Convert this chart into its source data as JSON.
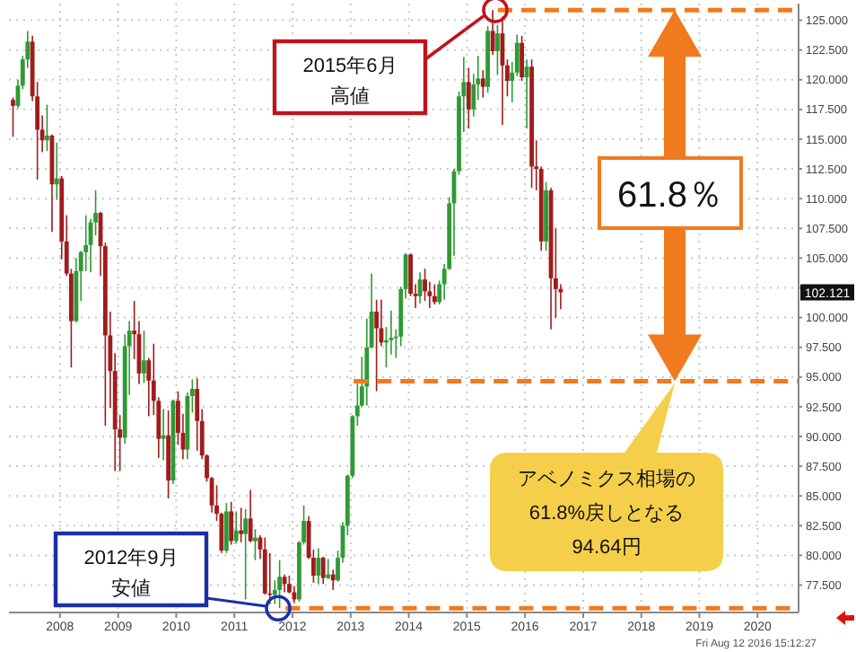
{
  "chart_data": {
    "type": "candlestick",
    "xlim": [
      "2007-02",
      "2020-09"
    ],
    "xticks": [
      "2008",
      "2009",
      "2010",
      "2011",
      "2012",
      "2013",
      "2014",
      "2015",
      "2016",
      "2017",
      "2018",
      "2019",
      "2020"
    ],
    "ylim": [
      75.2,
      126.4
    ],
    "yticks": [
      {
        "value": 77.5,
        "label": "77.500"
      },
      {
        "value": 80,
        "label": "80.000"
      },
      {
        "value": 82.5,
        "label": "82.500"
      },
      {
        "value": 85,
        "label": "85.000"
      },
      {
        "value": 87.5,
        "label": "87.500"
      },
      {
        "value": 90,
        "label": "90.000"
      },
      {
        "value": 92.5,
        "label": "92.500"
      },
      {
        "value": 95,
        "label": "95.000"
      },
      {
        "value": 97.5,
        "label": "97.500"
      },
      {
        "value": 100,
        "label": "100.000"
      },
      {
        "value": 102.5,
        "label": null
      },
      {
        "value": 105,
        "label": "105.000"
      },
      {
        "value": 107.5,
        "label": "107.500"
      },
      {
        "value": 110,
        "label": "110.000"
      },
      {
        "value": 112.5,
        "label": "112.500"
      },
      {
        "value": 115,
        "label": "115.000"
      },
      {
        "value": 117.5,
        "label": "117.500"
      },
      {
        "value": 120,
        "label": "120.000"
      },
      {
        "value": 122.5,
        "label": "122.500"
      },
      {
        "value": 125,
        "label": "125.000"
      }
    ],
    "grid": true,
    "series": [
      {
        "color": "#2f9a35",
        "x": [
          "2007-04",
          "2007-05",
          "2007-06",
          "2007-10",
          "2007-12",
          "2008-04",
          "2008-05",
          "2008-06",
          "2008-07",
          "2008-08",
          "2009-02",
          "2009-03",
          "2009-06",
          "2009-10",
          "2009-12",
          "2010-03",
          "2010-04",
          "2010-11",
          "2011-01",
          "2011-03",
          "2011-05",
          "2011-09",
          "2011-10",
          "2012-02",
          "2012-03",
          "2012-06",
          "2012-08",
          "2012-10",
          "2012-11",
          "2012-12",
          "2013-01",
          "2013-02",
          "2013-03",
          "2013-04",
          "2013-05",
          "2013-08",
          "2013-09",
          "2013-10",
          "2013-11",
          "2013-12",
          "2014-03",
          "2014-07",
          "2014-08",
          "2014-09",
          "2014-10",
          "2014-11",
          "2014-12",
          "2015-02",
          "2015-03",
          "2015-05",
          "2015-07",
          "2015-10",
          "2015-11",
          "2016-01",
          "2016-05"
        ],
        "ohlc": [
          [
            117.8,
            120.0,
            117.6,
            119.5
          ],
          [
            119.5,
            122.0,
            119.2,
            121.7
          ],
          [
            121.7,
            124.1,
            121.0,
            123.2
          ],
          [
            114.9,
            117.9,
            114.0,
            115.3
          ],
          [
            111.2,
            114.7,
            109.9,
            111.7
          ],
          [
            99.7,
            105.0,
            99.6,
            103.9
          ],
          [
            103.9,
            105.6,
            101.4,
            105.5
          ],
          [
            105.5,
            108.6,
            103.9,
            106.1
          ],
          [
            106.1,
            108.3,
            103.8,
            108.0
          ],
          [
            108.0,
            110.7,
            106.9,
            108.8
          ],
          [
            89.9,
            98.6,
            89.4,
            97.6
          ],
          [
            97.6,
            99.7,
            93.5,
            98.9
          ],
          [
            95.3,
            98.9,
            94.5,
            96.4
          ],
          [
            89.8,
            92.3,
            88.0,
            90.1
          ],
          [
            86.3,
            93.1,
            86.0,
            93.0
          ],
          [
            88.9,
            93.7,
            88.1,
            93.4
          ],
          [
            93.4,
            94.8,
            92.0,
            94.0
          ],
          [
            80.4,
            84.4,
            80.2,
            83.7
          ],
          [
            81.2,
            83.7,
            81.0,
            82.1
          ],
          [
            81.8,
            83.9,
            76.3,
            83.1
          ],
          [
            81.2,
            82.2,
            79.6,
            81.5
          ],
          [
            76.7,
            77.9,
            75.9,
            77.1
          ],
          [
            77.1,
            79.6,
            75.56,
            78.2
          ],
          [
            76.3,
            81.2,
            76.1,
            81.1
          ],
          [
            81.1,
            84.2,
            80.9,
            82.9
          ],
          [
            78.3,
            80.6,
            77.6,
            79.8
          ],
          [
            78.1,
            79.7,
            78.0,
            78.4
          ],
          [
            77.9,
            80.4,
            77.8,
            79.8
          ],
          [
            79.8,
            82.8,
            79.4,
            82.5
          ],
          [
            82.5,
            86.8,
            81.7,
            86.7
          ],
          [
            86.7,
            91.8,
            86.5,
            91.7
          ],
          [
            91.7,
            94.5,
            90.9,
            92.6
          ],
          [
            92.6,
            96.7,
            92.5,
            94.2
          ],
          [
            94.2,
            99.9,
            92.6,
            97.5
          ],
          [
            97.5,
            103.7,
            97.4,
            100.5
          ],
          [
            97.9,
            99.2,
            95.8,
            98.1
          ],
          [
            98.1,
            100.6,
            96.9,
            98.3
          ],
          [
            98.3,
            99.0,
            96.6,
            98.4
          ],
          [
            98.4,
            102.6,
            97.6,
            102.4
          ],
          [
            102.4,
            105.4,
            101.6,
            105.3
          ],
          [
            101.8,
            103.8,
            101.2,
            103.2
          ],
          [
            101.3,
            103.1,
            101.1,
            102.8
          ],
          [
            102.8,
            104.5,
            101.5,
            104.1
          ],
          [
            104.1,
            110.1,
            104.0,
            109.6
          ],
          [
            109.6,
            112.5,
            105.2,
            112.3
          ],
          [
            112.3,
            119.0,
            112.0,
            118.6
          ],
          [
            118.6,
            121.9,
            115.6,
            119.8
          ],
          [
            117.5,
            120.5,
            116.9,
            119.6
          ],
          [
            119.6,
            122.0,
            118.3,
            120.1
          ],
          [
            119.4,
            124.5,
            118.9,
            124.1
          ],
          [
            122.4,
            124.6,
            120.4,
            123.9
          ],
          [
            119.9,
            121.5,
            118.1,
            120.6
          ],
          [
            120.6,
            123.8,
            120.3,
            123.1
          ],
          [
            120.2,
            121.7,
            115.9,
            121.1
          ],
          [
            106.4,
            111.4,
            105.6,
            110.7
          ]
        ]
      },
      {
        "color": "#a01c1c",
        "x": [
          "2007-03",
          "2007-07",
          "2007-08",
          "2007-09",
          "2007-11",
          "2008-01",
          "2008-02",
          "2008-03",
          "2008-09",
          "2008-10",
          "2008-11",
          "2008-12",
          "2009-01",
          "2009-04",
          "2009-05",
          "2009-07",
          "2009-08",
          "2009-09",
          "2009-11",
          "2010-01",
          "2010-02",
          "2010-05",
          "2010-06",
          "2010-07",
          "2010-08",
          "2010-09",
          "2010-10",
          "2010-12",
          "2011-02",
          "2011-04",
          "2011-06",
          "2011-07",
          "2011-08",
          "2011-11",
          "2011-12",
          "2012-01",
          "2012-04",
          "2012-05",
          "2012-07",
          "2012-09",
          "2013-06",
          "2013-07",
          "2014-01",
          "2014-02",
          "2014-04",
          "2014-05",
          "2014-06",
          "2015-01",
          "2015-04",
          "2015-06",
          "2015-08",
          "2015-09",
          "2015-12",
          "2016-02",
          "2016-03",
          "2016-04",
          "2016-06",
          "2016-07",
          "2016-08"
        ],
        "ohlc": [
          [
            118.3,
            118.5,
            115.2,
            117.8
          ],
          [
            123.2,
            123.7,
            118.2,
            118.6
          ],
          [
            118.6,
            119.8,
            111.6,
            115.8
          ],
          [
            115.8,
            117.0,
            113.9,
            114.9
          ],
          [
            115.3,
            115.4,
            107.2,
            111.2
          ],
          [
            111.7,
            111.9,
            104.9,
            106.4
          ],
          [
            106.4,
            108.6,
            103.5,
            103.7
          ],
          [
            103.7,
            104.1,
            95.8,
            99.7
          ],
          [
            108.8,
            108.9,
            103.5,
            106.0
          ],
          [
            106.0,
            106.3,
            90.9,
            98.5
          ],
          [
            98.5,
            100.5,
            92.4,
            95.5
          ],
          [
            95.5,
            97.0,
            87.1,
            90.6
          ],
          [
            90.6,
            91.8,
            87.1,
            89.9
          ],
          [
            98.9,
            101.4,
            96.5,
            98.6
          ],
          [
            98.6,
            99.7,
            94.4,
            95.3
          ],
          [
            96.4,
            96.6,
            91.7,
            94.7
          ],
          [
            94.7,
            97.8,
            91.8,
            93.0
          ],
          [
            93.0,
            93.3,
            88.2,
            89.8
          ],
          [
            90.1,
            92.2,
            84.8,
            86.3
          ],
          [
            93.0,
            93.8,
            89.3,
            90.3
          ],
          [
            90.3,
            91.9,
            88.1,
            88.9
          ],
          [
            94.0,
            94.9,
            88.8,
            91.3
          ],
          [
            91.3,
            92.3,
            88.1,
            88.4
          ],
          [
            88.4,
            88.5,
            86.2,
            86.5
          ],
          [
            86.5,
            86.6,
            83.6,
            84.2
          ],
          [
            84.2,
            85.9,
            82.9,
            83.5
          ],
          [
            83.5,
            83.6,
            80.2,
            80.4
          ],
          [
            83.7,
            84.5,
            80.9,
            81.2
          ],
          [
            82.1,
            84.0,
            81.1,
            81.8
          ],
          [
            83.1,
            85.5,
            81.1,
            81.2
          ],
          [
            81.5,
            81.7,
            79.7,
            80.5
          ],
          [
            80.5,
            81.5,
            76.7,
            76.8
          ],
          [
            76.8,
            80.2,
            75.9,
            76.7
          ],
          [
            78.2,
            78.4,
            76.9,
            77.6
          ],
          [
            77.6,
            78.3,
            76.8,
            76.9
          ],
          [
            76.9,
            77.4,
            76.0,
            76.3
          ],
          [
            82.9,
            83.3,
            79.7,
            79.8
          ],
          [
            79.8,
            80.5,
            77.7,
            78.3
          ],
          [
            79.8,
            79.9,
            77.6,
            78.1
          ],
          [
            78.4,
            78.8,
            77.1,
            77.9
          ],
          [
            100.5,
            101.5,
            93.8,
            99.1
          ],
          [
            99.1,
            101.5,
            97.6,
            97.9
          ],
          [
            105.3,
            105.4,
            101.8,
            102.0
          ],
          [
            102.0,
            102.8,
            100.8,
            101.8
          ],
          [
            103.2,
            104.1,
            101.4,
            102.2
          ],
          [
            102.2,
            103.0,
            100.8,
            101.8
          ],
          [
            101.8,
            102.8,
            101.1,
            101.3
          ],
          [
            119.8,
            121.0,
            115.9,
            117.5
          ],
          [
            120.1,
            120.8,
            118.5,
            119.4
          ],
          [
            124.1,
            125.86,
            122.1,
            122.4
          ],
          [
            123.9,
            125.3,
            116.2,
            121.2
          ],
          [
            121.2,
            121.7,
            118.6,
            119.9
          ],
          [
            123.1,
            123.7,
            119.9,
            120.2
          ],
          [
            121.1,
            121.7,
            110.9,
            112.7
          ],
          [
            112.7,
            114.9,
            110.7,
            112.5
          ],
          [
            112.5,
            112.7,
            105.6,
            106.4
          ],
          [
            110.7,
            110.9,
            99.0,
            103.3
          ],
          [
            103.3,
            107.5,
            99.98,
            102.4
          ],
          [
            102.4,
            102.8,
            100.7,
            102.121
          ]
        ]
      }
    ],
    "ref_lines": [
      {
        "axis": "y",
        "value": 125.86,
        "color": "#f07a1e",
        "line_style": "dashed"
      },
      {
        "axis": "y",
        "value": 94.64,
        "color": "#f07a1e",
        "line_style": "dashed"
      },
      {
        "axis": "y",
        "value": 75.56,
        "color": "#f07a1e",
        "line_style": "dashed"
      }
    ],
    "annotations": [
      "2015年6月",
      "高値",
      "2012年9月",
      "安値",
      "61.8％",
      "アベノミクス相場の",
      "61.8%戻しとなる",
      "94.64円",
      "102.121",
      "Fri Aug 12 2016 15:12:27"
    ]
  }
}
